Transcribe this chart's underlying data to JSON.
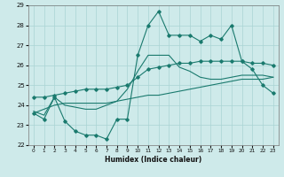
{
  "xlabel": "Humidex (Indice chaleur)",
  "ylabel": "",
  "background_color": "#ceeaea",
  "grid_color": "#aad4d4",
  "line_color": "#1a7a6e",
  "xlim": [
    -0.5,
    23.5
  ],
  "ylim": [
    22,
    29
  ],
  "yticks": [
    22,
    23,
    24,
    25,
    26,
    27,
    28,
    29
  ],
  "xticks": [
    0,
    1,
    2,
    3,
    4,
    5,
    6,
    7,
    8,
    9,
    10,
    11,
    12,
    13,
    14,
    15,
    16,
    17,
    18,
    19,
    20,
    21,
    22,
    23
  ],
  "hours": [
    0,
    1,
    2,
    3,
    4,
    5,
    6,
    7,
    8,
    9,
    10,
    11,
    12,
    13,
    14,
    15,
    16,
    17,
    18,
    19,
    20,
    21,
    22,
    23
  ],
  "line_top": [
    23.6,
    23.3,
    24.4,
    23.2,
    22.7,
    22.5,
    22.5,
    22.3,
    23.3,
    23.3,
    26.5,
    28.0,
    28.7,
    27.5,
    27.5,
    27.5,
    27.2,
    27.5,
    27.3,
    28.0,
    26.2,
    25.8,
    25.0,
    24.6
  ],
  "line_mid_high": [
    24.4,
    24.4,
    24.5,
    24.6,
    24.7,
    24.8,
    24.8,
    24.8,
    24.9,
    25.0,
    25.4,
    25.8,
    25.9,
    26.0,
    26.1,
    26.1,
    26.2,
    26.2,
    26.2,
    26.2,
    26.2,
    26.1,
    26.1,
    26.0
  ],
  "line_mid_low": [
    23.7,
    23.5,
    24.4,
    24.0,
    23.9,
    23.8,
    23.8,
    24.0,
    24.2,
    24.8,
    25.7,
    26.5,
    26.5,
    26.5,
    25.9,
    25.7,
    25.4,
    25.3,
    25.3,
    25.4,
    25.5,
    25.5,
    25.5,
    25.4
  ],
  "line_bottom": [
    23.6,
    23.8,
    24.0,
    24.1,
    24.1,
    24.1,
    24.1,
    24.1,
    24.2,
    24.3,
    24.4,
    24.5,
    24.5,
    24.6,
    24.7,
    24.8,
    24.9,
    25.0,
    25.1,
    25.2,
    25.3,
    25.3,
    25.3,
    25.4
  ]
}
